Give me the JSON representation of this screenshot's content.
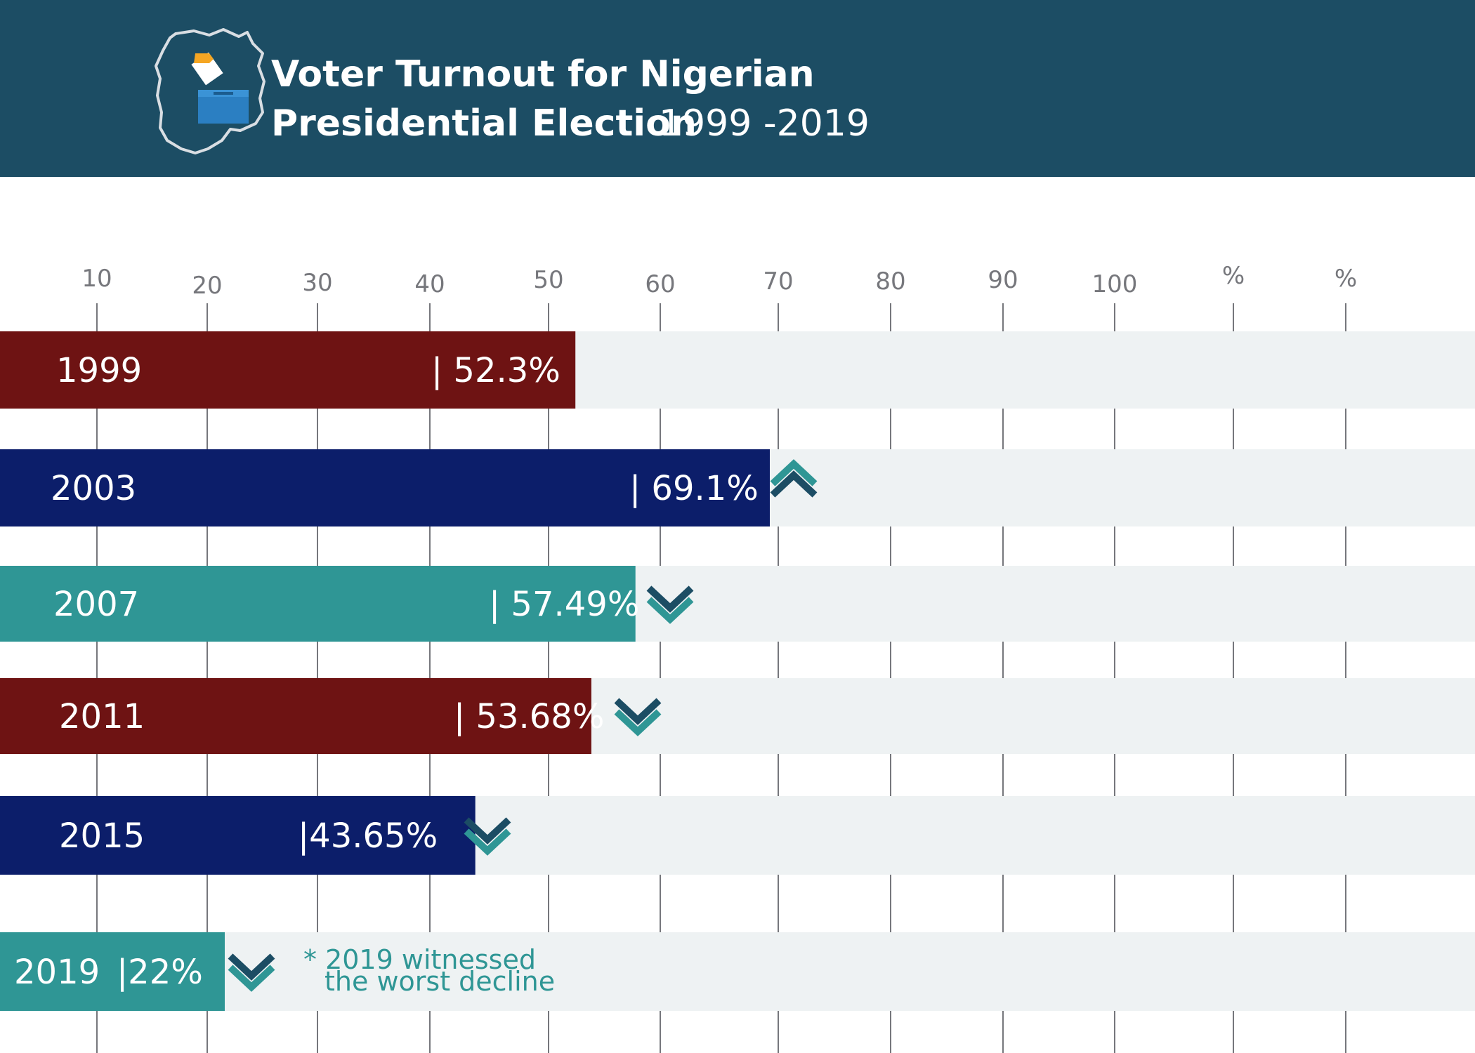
{
  "header": {
    "title_line1": "Voter Turnout for Nigerian",
    "title_line2": "Presidential Election",
    "title_years": "1999 -2019"
  },
  "colors": {
    "header_bg": "#1c4d64",
    "maroon": "#6e1313",
    "navy": "#0c1e6a",
    "teal": "#2f9695",
    "track": "#eef2f3",
    "gridline": "#76777c",
    "chevron_dark": "#1c4d64",
    "chevron_light": "#2f9695"
  },
  "icons": [
    "nigeria-map-icon",
    "ballot-box-icon",
    "chevron-up-icon",
    "chevron-down-icon"
  ],
  "chart_data": {
    "type": "bar",
    "orientation": "horizontal",
    "ticks": [
      "10",
      "20",
      "30",
      "40",
      "50",
      "60",
      "70",
      "80",
      "90",
      "100",
      "%",
      "%"
    ],
    "grid": true,
    "categories": [
      "1999",
      "2003",
      "2007",
      "2011",
      "2015",
      "2019"
    ],
    "values": [
      52.3,
      69.1,
      57.49,
      53.68,
      43.65,
      22
    ],
    "value_labels": [
      "| 52.3%",
      "| 69.1%",
      "| 57.49%",
      "| 53.68%",
      "|43.65%",
      "|22%"
    ],
    "bar_colors": [
      "maroon",
      "navy",
      "teal",
      "maroon",
      "navy",
      "teal"
    ],
    "trend": [
      "",
      "up",
      "down",
      "down",
      "down",
      "down"
    ],
    "note_line1": "* 2019 witnessed",
    "note_line2": "the worst decline"
  }
}
